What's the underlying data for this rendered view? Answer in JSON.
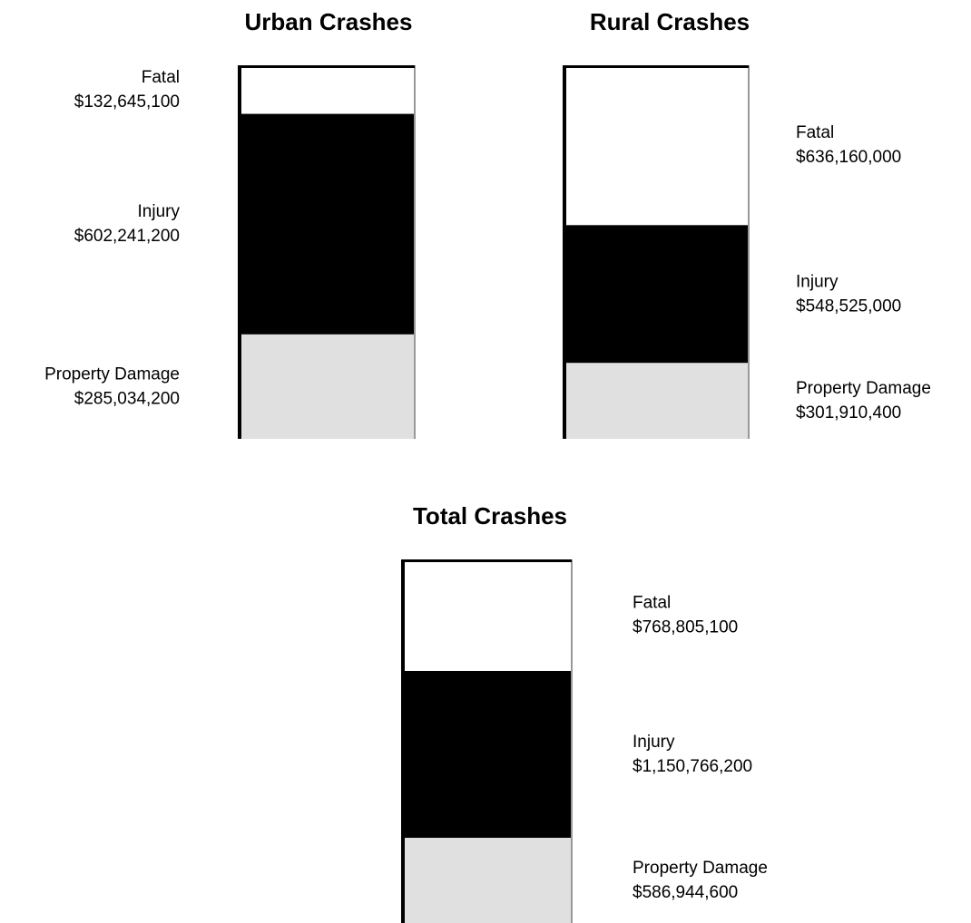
{
  "chart_data": [
    {
      "type": "bar",
      "title": "Urban Crashes",
      "categories": [
        "Fatal",
        "Injury",
        "Property Damage"
      ],
      "values": [
        132645100,
        602241200,
        285034200
      ],
      "value_labels": [
        "$132,645,100",
        "$602,241,200",
        "$285,034,200"
      ],
      "colors": [
        "#ffffff",
        "#000000",
        "#e0e0e0"
      ]
    },
    {
      "type": "bar",
      "title": "Rural Crashes",
      "categories": [
        "Fatal",
        "Injury",
        "Property Damage"
      ],
      "values": [
        636160000,
        548525000,
        301910400
      ],
      "value_labels": [
        "$636,160,000",
        "$548,525,000",
        "$301,910,400"
      ],
      "colors": [
        "#ffffff",
        "#000000",
        "#e0e0e0"
      ]
    },
    {
      "type": "bar",
      "title": "Total Crashes",
      "categories": [
        "Fatal",
        "Injury",
        "Property Damage"
      ],
      "values": [
        768805100,
        1150766200,
        586944600
      ],
      "value_labels": [
        "$768,805,100",
        "$1,150,766,200",
        "$586,944,600"
      ],
      "colors": [
        "#ffffff",
        "#000000",
        "#e0e0e0"
      ]
    }
  ]
}
